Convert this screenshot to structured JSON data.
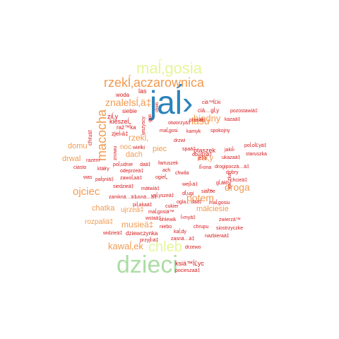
{
  "palette": {
    "blue": "#2b83ba",
    "green": "#abdda4",
    "yellow": "#e6f598",
    "light_orange": "#fdae61",
    "orange": "#f29a50",
    "red": "#d7191c",
    "pink_red": "#e0474c"
  },
  "words": [
    {
      "text": "jaĺ›",
      "color": "blue"
    },
    {
      "text": "dzieci",
      "color": "green"
    },
    {
      "text": "maĺ‚gosia",
      "color": "yellow"
    },
    {
      "text": "rzekĺ‚aczarownica",
      "color": "orange"
    },
    {
      "text": "macocha",
      "color": "orange"
    },
    {
      "text": "chleb",
      "color": "yellow"
    },
    {
      "text": "ojciec",
      "color": "orange"
    },
    {
      "text": "znalelsĺ‚ä‡",
      "color": "orange"
    },
    {
      "text": "lasu",
      "color": "orange"
    },
    {
      "text": "rzekĺ‚",
      "color": "orange"
    },
    {
      "text": "biedny",
      "color": "orange"
    },
    {
      "text": "potem",
      "color": "orange"
    },
    {
      "text": "droga",
      "color": "orange"
    },
    {
      "text": "kawaĺ‚ek",
      "color": "orange"
    },
    {
      "text": "musieä‡",
      "color": "orange"
    },
    {
      "text": "chatka",
      "color": "orange"
    },
    {
      "text": "domu",
      "color": "orange"
    },
    {
      "text": "drwal",
      "color": "orange"
    },
    {
      "text": "dach",
      "color": "orange"
    },
    {
      "text": "piec",
      "color": "orange"
    },
    {
      "text": "caĺ‚y",
      "color": "orange"
    },
    {
      "text": "mäłciesie",
      "color": "orange"
    },
    {
      "text": "ujrzeä‡",
      "color": "orange"
    },
    {
      "text": "rozpaliä‡",
      "color": "orange"
    },
    {
      "text": "noc",
      "color": "orange"
    },
    {
      "text": "ptaszek",
      "color": "red"
    },
    {
      "text": "las",
      "color": "red"
    },
    {
      "text": "woda",
      "color": "red"
    },
    {
      "text": "ziĺ‚y",
      "color": "red"
    },
    {
      "text": "siebie",
      "color": "red"
    },
    {
      "text": "kieszeĺ„",
      "color": "red"
    },
    {
      "text": "raż™ka",
      "color": "red"
    },
    {
      "text": "zjeĺ›ä‡",
      "color": "red"
    },
    {
      "text": "chrust",
      "color": "red"
    },
    {
      "text": "znowu",
      "color": "red"
    },
    {
      "text": "wszyscy",
      "color": "red"
    },
    {
      "text": "głab",
      "color": "red"
    },
    {
      "text": "chleb",
      "color": "red"
    },
    {
      "text": "ciä™ĺĽki",
      "color": "red"
    },
    {
      "text": "ciä…gĺ‚y",
      "color": "red"
    },
    {
      "text": "pozostawiä‡",
      "color": "red"
    },
    {
      "text": "pomäłc",
      "color": "red"
    },
    {
      "text": "kazaä‡",
      "color": "red"
    },
    {
      "text": "otworzyä‡",
      "color": "red"
    },
    {
      "text": "maĺ‚gosi",
      "color": "red"
    },
    {
      "text": "kamyk",
      "color": "red"
    },
    {
      "text": "spokojny",
      "color": "red"
    },
    {
      "text": "drzwi",
      "color": "red"
    },
    {
      "text": "spaä‡",
      "color": "red"
    },
    {
      "text": "jakiĺ›",
      "color": "red"
    },
    {
      "text": "staruszka",
      "color": "red"
    },
    {
      "text": "poĺ‚oĺĽyä‡",
      "color": "red"
    },
    {
      "text": "wielki",
      "color": "red"
    },
    {
      "text": "jeĺ›li",
      "color": "red"
    },
    {
      "text": "obudziä‡",
      "color": "red"
    },
    {
      "text": "ukazaä‡",
      "color": "red"
    },
    {
      "text": "ciasto",
      "color": "red"
    },
    {
      "text": "razem",
      "color": "red"
    },
    {
      "text": "poĺ‚udnie",
      "color": "red"
    },
    {
      "text": "daä‡",
      "color": "red"
    },
    {
      "text": "fartuszek",
      "color": "red"
    },
    {
      "text": "drogipoczä…ä‡",
      "color": "red"
    },
    {
      "text": "ktäłry",
      "color": "red"
    },
    {
      "text": "odeprzeä‡",
      "color": "red"
    },
    {
      "text": "ach",
      "color": "red"
    },
    {
      "text": "lĺ›ona",
      "color": "red"
    },
    {
      "text": "dobry",
      "color": "red"
    },
    {
      "text": "was",
      "color": "red"
    },
    {
      "text": "chwila",
      "color": "red"
    },
    {
      "text": "paĺşniä‡",
      "color": "red"
    },
    {
      "text": "zawoĺ‚aä‡",
      "color": "red"
    },
    {
      "text": "ogieĺ„",
      "color": "red"
    },
    {
      "text": "wejĺ›ä‡",
      "color": "red"
    },
    {
      "text": "gĺ‚äłd",
      "color": "red"
    },
    {
      "text": "chcieä‡",
      "color": "red"
    },
    {
      "text": "siedzieä‡",
      "color": "red"
    },
    {
      "text": "mätwiä‡",
      "color": "red"
    },
    {
      "text": "dĺ‚ugi",
      "color": "red"
    },
    {
      "text": "kaczka",
      "color": "red"
    },
    {
      "text": "siä™",
      "color": "red"
    },
    {
      "text": "zamknä…ä‡",
      "color": "red"
    },
    {
      "text": "usnä…ä‡",
      "color": "red"
    },
    {
      "text": "usĺ‚yszeä‡",
      "color": "red"
    },
    {
      "text": "ĺ‚oe",
      "color": "red"
    },
    {
      "text": "piĺ‚akaä‡",
      "color": "red"
    },
    {
      "text": "cukier",
      "color": "red"
    },
    {
      "text": "ogla…daä‡",
      "color": "red"
    },
    {
      "text": "maĺ‚gosiu",
      "color": "red"
    },
    {
      "text": "maĺ‚gosiä™",
      "color": "red"
    },
    {
      "text": "dziewczynka",
      "color": "red"
    },
    {
      "text": "wstaä‡",
      "color": "red"
    },
    {
      "text": "ĺ›myä‡",
      "color": "red"
    },
    {
      "text": "zwierzä™",
      "color": "red"
    },
    {
      "text": "widzieä‡",
      "color": "red"
    },
    {
      "text": "ohlewik",
      "color": "red"
    },
    {
      "text": "niebo",
      "color": "red"
    },
    {
      "text": "chrupu",
      "color": "red"
    },
    {
      "text": "siostrzyczke",
      "color": "red"
    },
    {
      "text": "kaĺ‚dy",
      "color": "red"
    },
    {
      "text": "zasnä…ä‡",
      "color": "red"
    },
    {
      "text": "nazbieraä‡",
      "color": "red"
    },
    {
      "text": "przyjĺ›ä‡",
      "color": "red"
    },
    {
      "text": "drzewo",
      "color": "red"
    },
    {
      "text": "ksiä™ĺĽyc",
      "color": "red"
    },
    {
      "text": "pocieszaä‡",
      "color": "red"
    }
  ]
}
